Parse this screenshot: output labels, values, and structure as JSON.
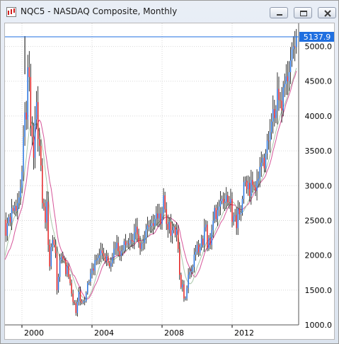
{
  "window": {
    "title": "NQC5 - NASDAQ Composite, Monthly",
    "buttons": {
      "minimize_icon": "minimize-icon",
      "maximize_icon": "maximize-icon",
      "close_icon": "close-icon"
    }
  },
  "chart_data": {
    "type": "candlestick",
    "symbol": "NQC5",
    "title": "NASDAQ Composite, Monthly",
    "last_price": "5137.9",
    "ylim": [
      1000,
      5300
    ],
    "y_ticks": [
      "5000.0",
      "4500.0",
      "4000.0",
      "3500.0",
      "3000.0",
      "2500.0",
      "2000.0",
      "1500.0",
      "1000.0"
    ],
    "x_ticks": [
      "2000",
      "2004",
      "2008",
      "2012"
    ],
    "colors": {
      "up": "#1f6fe0",
      "down": "#e41b1b",
      "ma_fast": "#a9c7a9",
      "ma_slow": "#d6569a",
      "price_line": "#1f6fe0",
      "grid": "#d7d7d7",
      "price_box": "#1f6fe0"
    },
    "grid": true,
    "close_series": {
      "start": "1998-06",
      "interval": "month",
      "values": [
        1895,
        1870,
        1500,
        1690,
        1780,
        1950,
        2200,
        2510,
        2280,
        2460,
        2550,
        2470,
        2680,
        2640,
        2710,
        2640,
        2750,
        2830,
        2970,
        3200,
        3700,
        4050,
        3950,
        4700,
        4560,
        3860,
        3700,
        3400,
        3950,
        4200,
        3670,
        3570,
        3290,
        2750,
        2700,
        2470,
        2770,
        2150,
        1840,
        2120,
        2220,
        2150,
        2030,
        1500,
        1690,
        1930,
        1980,
        1950,
        1930,
        1730,
        1850,
        1690,
        1600,
        1450,
        1330,
        1310,
        1170,
        1330,
        1480,
        1340,
        1320,
        1340,
        1340,
        1460,
        1600,
        1620,
        1740,
        1810,
        1780,
        1930,
        1930,
        1960,
        2000,
        2070,
        2030,
        1990,
        1920,
        1990,
        1890,
        1840,
        1890,
        1970,
        2090,
        2100,
        2180,
        2060,
        1990,
        2060,
        2070,
        2200,
        2150,
        2170,
        2160,
        2220,
        2210,
        2190,
        2330,
        2410,
        2300,
        2180,
        2090,
        2170,
        2180,
        2240,
        2370,
        2430,
        2410,
        2420,
        2460,
        2420,
        2520,
        2600,
        2530,
        2600,
        2450,
        2600,
        2860,
        2660,
        2450,
        2370,
        2480,
        2280,
        2360,
        2410,
        2290,
        2370,
        2090,
        1720,
        1540,
        1580,
        1380,
        1380,
        1530,
        1720,
        1760,
        1770,
        1830,
        2010,
        2050,
        2150,
        2040,
        2120,
        2240,
        2150,
        2400,
        2440,
        2100,
        2250,
        2150,
        2360,
        2500,
        2680,
        2520,
        2650,
        2700,
        2780,
        2810,
        2750,
        2770,
        2860,
        2760,
        2750,
        2810,
        2480,
        2560,
        2580,
        2390,
        2670,
        2590,
        2610,
        2810,
        3050,
        3070,
        2950,
        3040,
        2850,
        3080,
        3010,
        2980,
        2930,
        3070,
        3100,
        3270,
        3330,
        3400,
        3250,
        3460,
        3650,
        3640,
        3770,
        3920,
        4100,
        3970,
        4080,
        4390,
        4230,
        4220,
        4080,
        4410,
        4460,
        4570,
        4500,
        4630,
        4800,
        4960,
        5000,
        4990,
        5150
      ]
    },
    "ma_fast_series": [
      1700,
      1700,
      1650,
      1640,
      1660,
      1700,
      1800,
      1950,
      2050,
      2150,
      2250,
      2320,
      2420,
      2500,
      2560,
      2600,
      2640,
      2690,
      2760,
      2860,
      3030,
      3230,
      3400,
      3620,
      3800,
      3880,
      3920,
      3870,
      3870,
      3890,
      3830,
      3770,
      3680,
      3560,
      3420,
      3220,
      3050,
      2850,
      2640,
      2500,
      2400,
      2320,
      2230,
      2120,
      2030,
      1970,
      1930,
      1910,
      1900,
      1860,
      1840,
      1820,
      1790,
      1740,
      1680,
      1620,
      1550,
      1500,
      1470,
      1440,
      1410,
      1390,
      1370,
      1370,
      1390,
      1410,
      1450,
      1500,
      1560,
      1630,
      1700,
      1760,
      1830,
      1880,
      1920,
      1950,
      1960,
      1970,
      1960,
      1950,
      1940,
      1930,
      1940,
      1950,
      1970,
      1980,
      1990,
      2010,
      2030,
      2050,
      2060,
      2080,
      2100,
      2120,
      2140,
      2160,
      2180,
      2210,
      2230,
      2240,
      2240,
      2230,
      2220,
      2220,
      2240,
      2260,
      2290,
      2320,
      2350,
      2380,
      2400,
      2430,
      2460,
      2480,
      2500,
      2520,
      2560,
      2580,
      2570,
      2540,
      2530,
      2500,
      2450,
      2420,
      2400,
      2370,
      2280,
      2150,
      2020,
      1910,
      1800,
      1700,
      1640,
      1610,
      1590,
      1600,
      1630,
      1690,
      1760,
      1830,
      1880,
      1930,
      1990,
      2040,
      2100,
      2160,
      2200,
      2220,
      2240,
      2260,
      2290,
      2340,
      2390,
      2420,
      2470,
      2520,
      2570,
      2620,
      2660,
      2690,
      2720,
      2750,
      2760,
      2770,
      2760,
      2730,
      2700,
      2670,
      2640,
      2620,
      2620,
      2640,
      2680,
      2720,
      2770,
      2810,
      2850,
      2890,
      2930,
      2950,
      2970,
      3000,
      3040,
      3080,
      3130,
      3180,
      3230,
      3290,
      3360,
      3440,
      3520,
      3600,
      3690,
      3780,
      3860,
      3930,
      4010,
      4070,
      4120,
      4170,
      4230,
      4290,
      4360,
      4420,
      4480,
      4550,
      4620,
      4690
    ]
  }
}
